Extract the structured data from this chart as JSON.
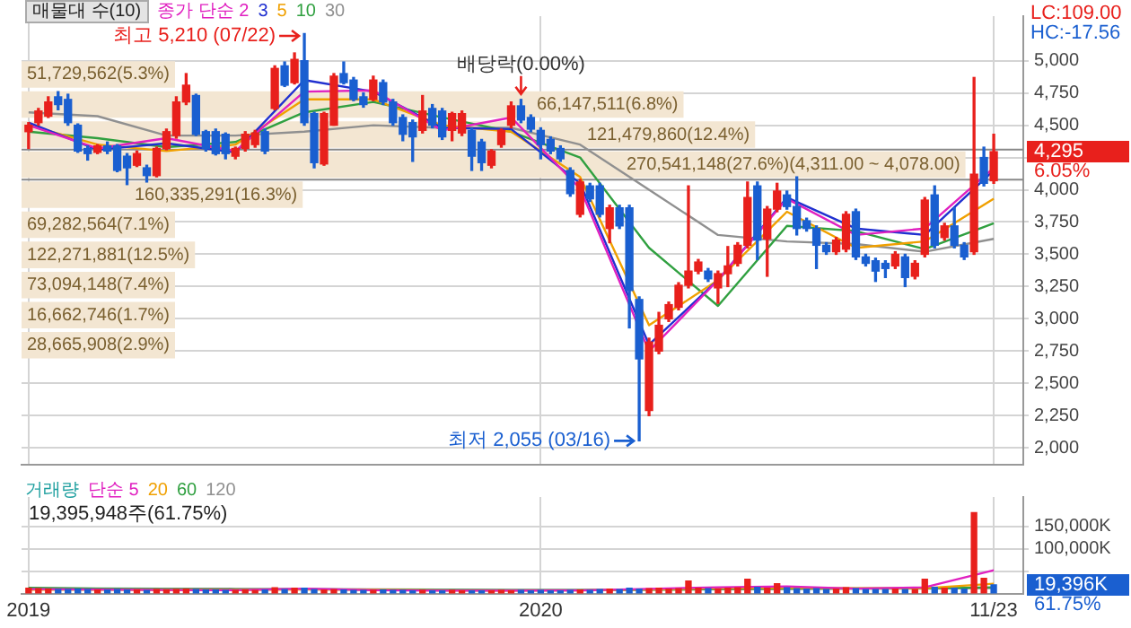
{
  "chart_data": [
    {
      "type": "candlestick",
      "title": "매물대 수(10)",
      "legend": "top left",
      "grid": true,
      "tick_labels": "y",
      "x": [
        "2019-01-07",
        "2019-01-14",
        "2019-01-21",
        "2019-01-28",
        "2019-02-04",
        "2019-02-11",
        "2019-02-18",
        "2019-02-25",
        "2019-03-04",
        "2019-03-11",
        "2019-03-18",
        "2019-03-25",
        "2019-04-01",
        "2019-04-08",
        "2019-04-15",
        "2019-04-22",
        "2019-04-29",
        "2019-05-06",
        "2019-05-13",
        "2019-05-20",
        "2019-05-27",
        "2019-06-03",
        "2019-06-10",
        "2019-06-17",
        "2019-06-24",
        "2019-07-01",
        "2019-07-08",
        "2019-07-15",
        "2019-07-22",
        "2019-07-29",
        "2019-08-05",
        "2019-08-12",
        "2019-08-19",
        "2019-08-26",
        "2019-09-02",
        "2019-09-09",
        "2019-09-16",
        "2019-09-23",
        "2019-09-30",
        "2019-10-07",
        "2019-10-14",
        "2019-10-21",
        "2019-10-28",
        "2019-11-04",
        "2019-11-11",
        "2019-11-18",
        "2019-11-25",
        "2019-12-02",
        "2019-12-09",
        "2019-12-16",
        "2019-12-23",
        "2019-12-30",
        "2020-01-06",
        "2020-01-13",
        "2020-01-20",
        "2020-01-27",
        "2020-02-03",
        "2020-02-10",
        "2020-02-17",
        "2020-02-24",
        "2020-03-02",
        "2020-03-09",
        "2020-03-16",
        "2020-03-23",
        "2020-03-30",
        "2020-04-06",
        "2020-04-13",
        "2020-04-20",
        "2020-04-27",
        "2020-05-04",
        "2020-05-11",
        "2020-05-18",
        "2020-05-25",
        "2020-06-01",
        "2020-06-08",
        "2020-06-15",
        "2020-06-22",
        "2020-06-29",
        "2020-07-06",
        "2020-07-13",
        "2020-07-20",
        "2020-07-27",
        "2020-08-03",
        "2020-08-10",
        "2020-08-17",
        "2020-08-24",
        "2020-08-31",
        "2020-09-07",
        "2020-09-14",
        "2020-09-21",
        "2020-09-28",
        "2020-10-05",
        "2020-10-12",
        "2020-10-19",
        "2020-10-26",
        "2020-11-02",
        "2020-11-09",
        "2020-11-16",
        "2020-11-23"
      ],
      "ohlc": [
        [
          4450,
          4520,
          4320,
          4500
        ],
        [
          4520,
          4630,
          4500,
          4610
        ],
        [
          4570,
          4720,
          4560,
          4680
        ],
        [
          4720,
          4760,
          4620,
          4660
        ],
        [
          4700,
          4740,
          4500,
          4520
        ],
        [
          4500,
          4510,
          4290,
          4300
        ],
        [
          4320,
          4340,
          4230,
          4280
        ],
        [
          4290,
          4350,
          4280,
          4340
        ],
        [
          4340,
          4370,
          4280,
          4300
        ],
        [
          4340,
          4350,
          4140,
          4150
        ],
        [
          4260,
          4280,
          4040,
          4170
        ],
        [
          4190,
          4300,
          4180,
          4280
        ],
        [
          4170,
          4190,
          4060,
          4110
        ],
        [
          4110,
          4330,
          4100,
          4320
        ],
        [
          4320,
          4470,
          4310,
          4450
        ],
        [
          4420,
          4720,
          4400,
          4680
        ],
        [
          4680,
          4900,
          4660,
          4810
        ],
        [
          4730,
          4740,
          4420,
          4430
        ],
        [
          4450,
          4460,
          4300,
          4320
        ],
        [
          4450,
          4470,
          4270,
          4280
        ],
        [
          4430,
          4440,
          4240,
          4280
        ],
        [
          4260,
          4330,
          4240,
          4320
        ],
        [
          4320,
          4450,
          4300,
          4430
        ],
        [
          4350,
          4460,
          4330,
          4440
        ],
        [
          4450,
          4470,
          4280,
          4300
        ],
        [
          4630,
          4960,
          4620,
          4940
        ],
        [
          4960,
          4990,
          4800,
          4810
        ],
        [
          4830,
          5060,
          4820,
          5010
        ],
        [
          5000,
          5210,
          4500,
          4520
        ],
        [
          4590,
          4600,
          4170,
          4210
        ],
        [
          4200,
          4600,
          4190,
          4590
        ],
        [
          4500,
          4900,
          4500,
          4880
        ],
        [
          4900,
          4990,
          4820,
          4830
        ],
        [
          4850,
          4870,
          4690,
          4700
        ],
        [
          4720,
          4750,
          4640,
          4660
        ],
        [
          4700,
          4880,
          4690,
          4850
        ],
        [
          4830,
          4850,
          4660,
          4680
        ],
        [
          4680,
          4700,
          4500,
          4520
        ],
        [
          4560,
          4580,
          4380,
          4430
        ],
        [
          4520,
          4540,
          4220,
          4410
        ],
        [
          4460,
          4730,
          4440,
          4610
        ],
        [
          4630,
          4660,
          4480,
          4500
        ],
        [
          4610,
          4630,
          4390,
          4410
        ],
        [
          4460,
          4600,
          4380,
          4590
        ],
        [
          4440,
          4610,
          4420,
          4590
        ],
        [
          4460,
          4480,
          4150,
          4260
        ],
        [
          4370,
          4390,
          4150,
          4210
        ],
        [
          4190,
          4310,
          4170,
          4300
        ],
        [
          4350,
          4470,
          4330,
          4460
        ],
        [
          4500,
          4680,
          4480,
          4650
        ],
        [
          4650,
          4700,
          4520,
          4540
        ],
        [
          4560,
          4580,
          4450,
          4470
        ],
        [
          4460,
          4480,
          4240,
          4350
        ],
        [
          4390,
          4410,
          4280,
          4300
        ],
        [
          4320,
          4340,
          4220,
          4240
        ],
        [
          4150,
          4170,
          3950,
          3970
        ],
        [
          3810,
          4080,
          3790,
          4060
        ],
        [
          4030,
          4050,
          3910,
          3930
        ],
        [
          4030,
          4050,
          3790,
          3810
        ],
        [
          3700,
          3880,
          3590,
          3860
        ],
        [
          3860,
          3880,
          3700,
          3720
        ],
        [
          3860,
          3880,
          2930,
          3220
        ],
        [
          3150,
          3170,
          2055,
          2690
        ],
        [
          2290,
          2850,
          2250,
          2820
        ],
        [
          2750,
          3050,
          2730,
          2950
        ],
        [
          3000,
          3130,
          2980,
          3110
        ],
        [
          3090,
          3280,
          3070,
          3260
        ],
        [
          3260,
          4030,
          3240,
          3370
        ],
        [
          3370,
          3460,
          3350,
          3440
        ],
        [
          3370,
          3390,
          3290,
          3310
        ],
        [
          3240,
          3370,
          3120,
          3350
        ],
        [
          3350,
          3560,
          3250,
          3410
        ],
        [
          3430,
          3590,
          3410,
          3570
        ],
        [
          3570,
          4060,
          3550,
          3940
        ],
        [
          4030,
          4060,
          3460,
          3610
        ],
        [
          3620,
          3870,
          3330,
          3850
        ],
        [
          3850,
          4050,
          3830,
          3990
        ],
        [
          3960,
          3990,
          3850,
          3870
        ],
        [
          3870,
          4100,
          3650,
          3700
        ],
        [
          3760,
          3780,
          3680,
          3700
        ],
        [
          3700,
          3720,
          3390,
          3570
        ],
        [
          3570,
          3590,
          3500,
          3520
        ],
        [
          3520,
          3630,
          3500,
          3610
        ],
        [
          3540,
          3830,
          3520,
          3810
        ],
        [
          3830,
          3850,
          3460,
          3480
        ],
        [
          3480,
          3500,
          3410,
          3430
        ],
        [
          3450,
          3470,
          3290,
          3370
        ],
        [
          3430,
          3450,
          3320,
          3390
        ],
        [
          3410,
          3520,
          3390,
          3500
        ],
        [
          3480,
          3500,
          3250,
          3320
        ],
        [
          3330,
          3450,
          3310,
          3430
        ],
        [
          3500,
          3940,
          3480,
          3920
        ],
        [
          3960,
          4030,
          3550,
          3570
        ],
        [
          3630,
          3740,
          3610,
          3720
        ],
        [
          3720,
          3860,
          3550,
          3570
        ],
        [
          3570,
          3590,
          3460,
          3480
        ],
        [
          3520,
          4870,
          3500,
          4120
        ],
        [
          4250,
          4330,
          4030,
          4050
        ],
        [
          4070,
          4430,
          4050,
          4295
        ]
      ],
      "colors": [
        "#e8201c",
        "#e8201c",
        "#e8201c",
        "#1a5fd0",
        "#1a5fd0",
        "#1a5fd0",
        "#1a5fd0",
        "#e8201c",
        "#1a5fd0",
        "#1a5fd0",
        "#1a5fd0",
        "#e8201c",
        "#1a5fd0",
        "#e8201c",
        "#e8201c",
        "#e8201c",
        "#e8201c",
        "#1a5fd0",
        "#1a5fd0",
        "#1a5fd0",
        "#1a5fd0",
        "#e8201c",
        "#e8201c",
        "#e8201c",
        "#1a5fd0",
        "#e8201c",
        "#1a5fd0",
        "#e8201c",
        "#1a5fd0",
        "#1a5fd0",
        "#e8201c",
        "#e8201c",
        "#1a5fd0",
        "#1a5fd0",
        "#1a5fd0",
        "#e8201c",
        "#1a5fd0",
        "#1a5fd0",
        "#1a5fd0",
        "#1a5fd0",
        "#e8201c",
        "#1a5fd0",
        "#1a5fd0",
        "#e8201c",
        "#e8201c",
        "#1a5fd0",
        "#1a5fd0",
        "#e8201c",
        "#e8201c",
        "#e8201c",
        "#1a5fd0",
        "#1a5fd0",
        "#1a5fd0",
        "#1a5fd0",
        "#1a5fd0",
        "#1a5fd0",
        "#e8201c",
        "#1a5fd0",
        "#1a5fd0",
        "#e8201c",
        "#1a5fd0",
        "#1a5fd0",
        "#1a5fd0",
        "#e8201c",
        "#e8201c",
        "#e8201c",
        "#e8201c",
        "#e8201c",
        "#e8201c",
        "#1a5fd0",
        "#e8201c",
        "#e8201c",
        "#e8201c",
        "#e8201c",
        "#1a5fd0",
        "#e8201c",
        "#e8201c",
        "#1a5fd0",
        "#1a5fd0",
        "#1a5fd0",
        "#1a5fd0",
        "#1a5fd0",
        "#e8201c",
        "#e8201c",
        "#1a5fd0",
        "#1a5fd0",
        "#1a5fd0",
        "#1a5fd0",
        "#e8201c",
        "#1a5fd0",
        "#e8201c",
        "#e8201c",
        "#1a5fd0",
        "#e8201c",
        "#1a5fd0",
        "#1a5fd0",
        "#e8201c",
        "#1a5fd0",
        "#e8201c"
      ],
      "series": [
        {
          "type": "line",
          "name": "종가 단순 2",
          "color": "#e020c0",
          "x": [
            "2019-01-07",
            "2019-02-25",
            "2019-04-15",
            "2019-06-03",
            "2019-07-22",
            "2019-09-09",
            "2019-10-28",
            "2019-12-16",
            "2020-02-03",
            "2020-03-23",
            "2020-05-11",
            "2020-06-29",
            "2020-08-17",
            "2020-10-05",
            "2020-11-23"
          ],
          "values": [
            4500,
            4320,
            4400,
            4300,
            4760,
            4770,
            4460,
            4560,
            4010,
            2750,
            3300,
            3930,
            3650,
            3700,
            4170
          ]
        },
        {
          "type": "line",
          "name": "3",
          "color": "#2030d0",
          "x": [
            "2019-01-07",
            "2019-02-25",
            "2019-04-15",
            "2019-06-03",
            "2019-07-22",
            "2019-09-09",
            "2019-10-28",
            "2019-12-16",
            "2020-02-03",
            "2020-03-23",
            "2020-05-11",
            "2020-06-29",
            "2020-08-17",
            "2020-10-05",
            "2020-11-23"
          ],
          "values": [
            4520,
            4310,
            4360,
            4290,
            4850,
            4760,
            4480,
            4470,
            4050,
            2800,
            3300,
            3940,
            3700,
            3650,
            4150
          ]
        },
        {
          "type": "line",
          "name": "5",
          "color": "#f0a000",
          "x": [
            "2019-01-07",
            "2019-02-25",
            "2019-04-15",
            "2019-06-03",
            "2019-07-22",
            "2019-09-09",
            "2019-10-28",
            "2019-12-16",
            "2020-02-03",
            "2020-03-23",
            "2020-05-11",
            "2020-06-29",
            "2020-08-17",
            "2020-10-05",
            "2020-11-23"
          ],
          "values": [
            4500,
            4350,
            4300,
            4350,
            4700,
            4700,
            4500,
            4450,
            4100,
            2950,
            3300,
            3830,
            3550,
            3600,
            3930
          ]
        },
        {
          "type": "line",
          "name": "10",
          "color": "#30a040",
          "x": [
            "2019-01-07",
            "2019-02-25",
            "2019-04-15",
            "2019-06-03",
            "2019-07-22",
            "2019-09-09",
            "2019-10-28",
            "2019-12-16",
            "2020-02-03",
            "2020-03-23",
            "2020-05-11",
            "2020-06-29",
            "2020-08-17",
            "2020-10-05",
            "2020-11-23"
          ],
          "values": [
            4450,
            4400,
            4330,
            4370,
            4600,
            4680,
            4560,
            4450,
            4250,
            3550,
            3100,
            3720,
            3680,
            3540,
            3740
          ]
        },
        {
          "type": "line",
          "name": "30",
          "color": "#909090",
          "x": [
            "2019-01-07",
            "2019-02-25",
            "2019-04-15",
            "2019-06-03",
            "2019-07-22",
            "2019-09-09",
            "2019-10-28",
            "2019-12-16",
            "2020-02-03",
            "2020-03-23",
            "2020-05-11",
            "2020-06-29",
            "2020-08-17",
            "2020-10-05",
            "2020-11-23"
          ],
          "values": [
            4600,
            4570,
            4420,
            4420,
            4450,
            4500,
            4480,
            4480,
            4350,
            4000,
            3650,
            3600,
            3580,
            3520,
            3620
          ]
        }
      ],
      "xlim": [
        "2019-01-02",
        "2020-12-14"
      ],
      "xticks": [
        {
          "value": "2019-01-07",
          "label": null
        },
        {
          "value": "2020-01-06",
          "label": null
        },
        {
          "value": "2020-11-23",
          "label": null
        }
      ],
      "ylim": [
        1870,
        5345
      ],
      "yticks": [
        {
          "value": 2000,
          "label": "2,000"
        },
        {
          "value": 2250,
          "label": "2,250"
        },
        {
          "value": 2500,
          "label": "2,500"
        },
        {
          "value": 2750,
          "label": "2,750"
        },
        {
          "value": 3000,
          "label": "3,000"
        },
        {
          "value": 3250,
          "label": "3,250"
        },
        {
          "value": 3500,
          "label": "3,500"
        },
        {
          "value": 3750,
          "label": "3,750"
        },
        {
          "value": 4000,
          "label": "4,000"
        },
        {
          "value": 4250,
          "label": null
        },
        {
          "value": 4500,
          "label": "4,500"
        },
        {
          "value": 4750,
          "label": "4,750"
        },
        {
          "value": 5000,
          "label": "5,000"
        }
      ],
      "bands": [
        {
          "axis": "y",
          "from": 4777,
          "to": 5010,
          "label": "51,729,562(5.3%)",
          "color": "#f3e6d2"
        },
        {
          "axis": "y",
          "from": 4544,
          "to": 4777,
          "label": "66,147,511(6.8%)",
          "color": "#f3e6d2"
        },
        {
          "axis": "y",
          "from": 4311,
          "to": 4544,
          "label": "121,479,860(12.4%)",
          "color": "#f3e6d2"
        },
        {
          "axis": "y",
          "from": 4078,
          "to": 4311,
          "label": "270,541,148(27.6%)(4,311.00 ~ 4,078.00)",
          "color": "#f3e6d2"
        },
        {
          "axis": "y",
          "from": 3845,
          "to": 4078,
          "label": "160,335,291(16.3%)",
          "color": "#f3e6d2"
        },
        {
          "axis": "y",
          "from": 3612,
          "to": 3845,
          "label": "69,282,564(7.1%)",
          "color": "#f3e6d2"
        },
        {
          "axis": "y",
          "from": 3379,
          "to": 3612,
          "label": "122,271,881(12.5%)",
          "color": "#f3e6d2"
        },
        {
          "axis": "y",
          "from": 3146,
          "to": 3379,
          "label": "73,094,148(7.4%)",
          "color": "#f3e6d2"
        },
        {
          "axis": "y",
          "from": 2913,
          "to": 3146,
          "label": "16,662,746(1.7%)",
          "color": "#f3e6d2"
        },
        {
          "axis": "y",
          "from": 2680,
          "to": 2913,
          "label": "28,665,908(2.9%)",
          "color": "#f3e6d2"
        }
      ],
      "ref_lines": [
        {
          "axis": "y",
          "value": 4311,
          "color": "#888888"
        },
        {
          "axis": "y",
          "value": 4078,
          "color": "#888888"
        }
      ],
      "annotations": [
        {
          "text": "최고 5,210 (07/22)",
          "x": "2019-07-22",
          "y": 5210
        },
        {
          "text": "최저 2,055 (03/16)",
          "x": "2020-03-16",
          "y": 2055
        },
        {
          "text": "배당락(0.00%)",
          "x": "2019-12-23",
          "y": 4700
        },
        "LC:109.00",
        "HC:-17.56",
        "4,295",
        "6.05%"
      ]
    },
    {
      "type": "bar",
      "legend": "top left",
      "legend_title": "거래량",
      "grid": true,
      "x": [
        "2019-01-07",
        "2019-01-14",
        "2019-01-21",
        "2019-01-28",
        "2019-02-04",
        "2019-02-11",
        "2019-02-18",
        "2019-02-25",
        "2019-03-04",
        "2019-03-11",
        "2019-03-18",
        "2019-03-25",
        "2019-04-01",
        "2019-04-08",
        "2019-04-15",
        "2019-04-22",
        "2019-04-29",
        "2019-05-06",
        "2019-05-13",
        "2019-05-20",
        "2019-05-27",
        "2019-06-03",
        "2019-06-10",
        "2019-06-17",
        "2019-06-24",
        "2019-07-01",
        "2019-07-08",
        "2019-07-15",
        "2019-07-22",
        "2019-07-29",
        "2019-08-05",
        "2019-08-12",
        "2019-08-19",
        "2019-08-26",
        "2019-09-02",
        "2019-09-09",
        "2019-09-16",
        "2019-09-23",
        "2019-09-30",
        "2019-10-07",
        "2019-10-14",
        "2019-10-21",
        "2019-10-28",
        "2019-11-04",
        "2019-11-11",
        "2019-11-18",
        "2019-11-25",
        "2019-12-02",
        "2019-12-09",
        "2019-12-16",
        "2019-12-23",
        "2019-12-30",
        "2020-01-06",
        "2020-01-13",
        "2020-01-20",
        "2020-01-27",
        "2020-02-03",
        "2020-02-10",
        "2020-02-17",
        "2020-02-24",
        "2020-03-02",
        "2020-03-09",
        "2020-03-16",
        "2020-03-23",
        "2020-03-30",
        "2020-04-06",
        "2020-04-13",
        "2020-04-20",
        "2020-04-27",
        "2020-05-04",
        "2020-05-11",
        "2020-05-18",
        "2020-05-25",
        "2020-06-01",
        "2020-06-08",
        "2020-06-15",
        "2020-06-22",
        "2020-06-29",
        "2020-07-06",
        "2020-07-13",
        "2020-07-20",
        "2020-07-27",
        "2020-08-03",
        "2020-08-10",
        "2020-08-17",
        "2020-08-24",
        "2020-08-31",
        "2020-09-07",
        "2020-09-14",
        "2020-09-21",
        "2020-09-28",
        "2020-10-05",
        "2020-10-12",
        "2020-10-19",
        "2020-10-26",
        "2020-11-02",
        "2020-11-09",
        "2020-11-16",
        "2020-11-23"
      ],
      "values": [
        12000,
        11000,
        10000,
        9000,
        9000,
        10000,
        9000,
        8000,
        8000,
        9000,
        8000,
        8000,
        7000,
        9000,
        8000,
        9000,
        10000,
        9000,
        8000,
        8000,
        7000,
        7000,
        8000,
        7000,
        8000,
        13000,
        9000,
        12000,
        12000,
        9000,
        8000,
        9000,
        8000,
        7000,
        7000,
        7000,
        8000,
        7000,
        7000,
        6000,
        7000,
        6000,
        6000,
        7000,
        6000,
        6000,
        6000,
        6000,
        7000,
        6000,
        7000,
        6000,
        7000,
        6000,
        6000,
        7000,
        8000,
        7000,
        9000,
        10000,
        9000,
        12000,
        10000,
        11000,
        12000,
        10000,
        11000,
        28000,
        12000,
        11000,
        10000,
        12000,
        13000,
        32000,
        14000,
        12000,
        22000,
        13000,
        11000,
        10000,
        11000,
        9000,
        10000,
        13000,
        11000,
        9000,
        9000,
        9000,
        10000,
        9000,
        9000,
        32000,
        14000,
        12000,
        12000,
        10000,
        180000,
        34000,
        19396
      ],
      "colors": [
        "#e8201c",
        "#e8201c",
        "#e8201c",
        "#1a5fd0",
        "#1a5fd0",
        "#1a5fd0",
        "#1a5fd0",
        "#e8201c",
        "#1a5fd0",
        "#1a5fd0",
        "#1a5fd0",
        "#e8201c",
        "#1a5fd0",
        "#e8201c",
        "#e8201c",
        "#e8201c",
        "#e8201c",
        "#1a5fd0",
        "#1a5fd0",
        "#1a5fd0",
        "#1a5fd0",
        "#e8201c",
        "#e8201c",
        "#e8201c",
        "#1a5fd0",
        "#e8201c",
        "#1a5fd0",
        "#e8201c",
        "#1a5fd0",
        "#1a5fd0",
        "#e8201c",
        "#e8201c",
        "#1a5fd0",
        "#1a5fd0",
        "#1a5fd0",
        "#e8201c",
        "#1a5fd0",
        "#1a5fd0",
        "#1a5fd0",
        "#1a5fd0",
        "#e8201c",
        "#1a5fd0",
        "#1a5fd0",
        "#e8201c",
        "#e8201c",
        "#1a5fd0",
        "#1a5fd0",
        "#e8201c",
        "#e8201c",
        "#e8201c",
        "#1a5fd0",
        "#1a5fd0",
        "#1a5fd0",
        "#1a5fd0",
        "#1a5fd0",
        "#1a5fd0",
        "#e8201c",
        "#1a5fd0",
        "#1a5fd0",
        "#e8201c",
        "#1a5fd0",
        "#1a5fd0",
        "#1a5fd0",
        "#e8201c",
        "#e8201c",
        "#e8201c",
        "#e8201c",
        "#e8201c",
        "#e8201c",
        "#1a5fd0",
        "#e8201c",
        "#e8201c",
        "#e8201c",
        "#e8201c",
        "#1a5fd0",
        "#e8201c",
        "#e8201c",
        "#1a5fd0",
        "#1a5fd0",
        "#1a5fd0",
        "#1a5fd0",
        "#1a5fd0",
        "#e8201c",
        "#e8201c",
        "#1a5fd0",
        "#1a5fd0",
        "#1a5fd0",
        "#1a5fd0",
        "#e8201c",
        "#1a5fd0",
        "#e8201c",
        "#e8201c",
        "#1a5fd0",
        "#e8201c",
        "#1a5fd0",
        "#1a5fd0",
        "#e8201c",
        "#e8201c",
        "#1a5fd0"
      ],
      "series": [
        {
          "type": "line",
          "name": "단순 5",
          "color": "#e020c0",
          "x": [
            "2019-01-07",
            "2019-02-25",
            "2019-04-15",
            "2019-06-03",
            "2019-07-22",
            "2019-09-09",
            "2019-10-28",
            "2019-12-16",
            "2020-02-03",
            "2020-03-23",
            "2020-05-11",
            "2020-06-29",
            "2020-08-17",
            "2020-10-05",
            "2020-11-23"
          ],
          "values": [
            10000,
            9000,
            8000,
            7500,
            11000,
            7500,
            6500,
            6500,
            7000,
            10500,
            14000,
            16000,
            11000,
            14000,
            52000
          ]
        },
        {
          "type": "line",
          "name": "20",
          "color": "#f0a000",
          "x": [
            "2019-01-07",
            "2019-02-25",
            "2019-04-15",
            "2019-06-03",
            "2019-07-22",
            "2019-09-09",
            "2019-10-28",
            "2019-12-16",
            "2020-02-03",
            "2020-03-23",
            "2020-05-11",
            "2020-06-29",
            "2020-08-17",
            "2020-10-05",
            "2020-11-23"
          ],
          "values": [
            8500,
            8500,
            8000,
            8000,
            9000,
            8500,
            7000,
            6500,
            7000,
            9000,
            12000,
            13000,
            12000,
            12000,
            22000
          ]
        },
        {
          "type": "line",
          "name": "60",
          "color": "#30a040",
          "x": [
            "2019-01-07",
            "2019-02-25",
            "2019-04-15",
            "2019-06-03",
            "2019-07-22",
            "2019-09-09",
            "2019-10-28",
            "2019-12-16",
            "2020-02-03",
            "2020-03-23",
            "2020-05-11",
            "2020-06-29",
            "2020-08-17",
            "2020-10-05",
            "2020-11-23"
          ],
          "values": [
            13000,
            11000,
            10000,
            9500,
            9500,
            9000,
            8000,
            7500,
            7500,
            8500,
            10000,
            11000,
            11500,
            11500,
            14000
          ]
        },
        {
          "type": "line",
          "name": "120",
          "color": "#909090",
          "x": [
            "2019-01-07",
            "2019-02-25",
            "2019-04-15",
            "2019-06-03",
            "2019-07-22",
            "2019-09-09",
            "2019-10-28",
            "2019-12-16",
            "2020-02-03",
            "2020-03-23",
            "2020-05-11",
            "2020-06-29",
            "2020-08-17",
            "2020-10-05",
            "2020-11-23"
          ],
          "values": [
            12000,
            11500,
            11000,
            10500,
            10000,
            9500,
            9000,
            8500,
            8500,
            9000,
            9500,
            10000,
            10500,
            11000,
            12000
          ]
        }
      ],
      "xlim": [
        "2019-01-02",
        "2020-12-14"
      ],
      "xticks": [
        {
          "value": "2019-01-07",
          "label": "2019"
        },
        {
          "value": "2020-01-06",
          "label": "2020"
        },
        {
          "value": "2020-11-23",
          "label": "11/23"
        }
      ],
      "ylim": [
        0,
        215000
      ],
      "yticks": [
        {
          "value": 50000,
          "label": null
        },
        {
          "value": 100000,
          "label": "100,000K"
        },
        {
          "value": 150000,
          "label": "150,000K"
        }
      ],
      "annotations": [
        "19,395,948주(61.75%)",
        "19,396K",
        "61.75%"
      ]
    }
  ]
}
